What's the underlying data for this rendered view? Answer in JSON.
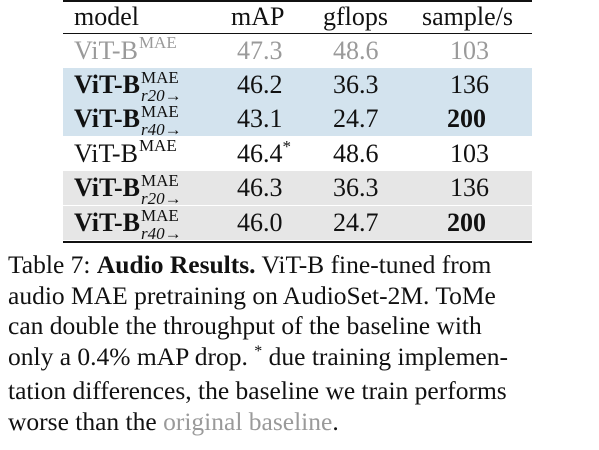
{
  "table": {
    "headers": {
      "model": "model",
      "map": "mAP",
      "gflops": "gflops",
      "sample": "sample/s"
    },
    "rows": [
      {
        "model_base": "ViT-B",
        "model_sup": "MAE",
        "model_sub": "",
        "map": "47.3",
        "map_mark": "",
        "gflops": "48.6",
        "sample": "103",
        "style": "muted",
        "bg": "none",
        "bold_model": false,
        "bold_sample": false
      },
      {
        "model_base": "ViT-B",
        "model_sup": "MAE",
        "model_sub": "r20",
        "map": "46.2",
        "map_mark": "",
        "gflops": "36.3",
        "sample": "136",
        "style": "normal",
        "bg": "blue",
        "bold_model": true,
        "bold_sample": false
      },
      {
        "model_base": "ViT-B",
        "model_sup": "MAE",
        "model_sub": "r40",
        "map": "43.1",
        "map_mark": "",
        "gflops": "24.7",
        "sample": "200",
        "style": "normal",
        "bg": "blue",
        "bold_model": true,
        "bold_sample": true
      },
      {
        "model_base": "ViT-B",
        "model_sup": "MAE",
        "model_sub": "",
        "map": "46.4",
        "map_mark": "*",
        "gflops": "48.6",
        "sample": "103",
        "style": "normal",
        "bg": "none",
        "bold_model": false,
        "bold_sample": false
      },
      {
        "model_base": "ViT-B",
        "model_sup": "MAE",
        "model_sub": "r20",
        "map": "46.3",
        "map_mark": "",
        "gflops": "36.3",
        "sample": "136",
        "style": "normal",
        "bg": "gray",
        "bold_model": true,
        "bold_sample": false
      },
      {
        "model_base": "ViT-B",
        "model_sup": "MAE",
        "model_sub": "r40",
        "map": "46.0",
        "map_mark": "",
        "gflops": "24.7",
        "sample": "200",
        "style": "normal",
        "bg": "gray",
        "bold_model": true,
        "bold_sample": true
      }
    ],
    "arrow_glyph": "→"
  },
  "caption": {
    "label": "Table 7:",
    "title": "Audio Results.",
    "line1_rest": "ViT-B fine-tuned from",
    "line2": "audio MAE pretraining on AudioSet-2M. ToMe",
    "line3": "can double the throughput of the baseline with",
    "line4_a": "only a 0.4% mAP drop.",
    "line4_star": "*",
    "line4_b": "due training implemen-",
    "line5": "tation differences, the baseline we train performs",
    "line6_a": "worse than the",
    "line6_muted": "original baseline",
    "line6_end": "."
  },
  "colors": {
    "blue_row": "#d3e3ee",
    "gray_row": "#e6e6e6",
    "muted_text": "#9a9a9a"
  }
}
